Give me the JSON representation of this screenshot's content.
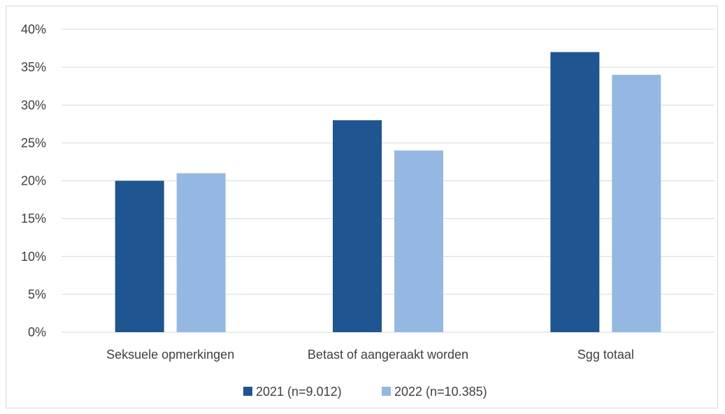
{
  "chart_data": {
    "type": "bar",
    "categories": [
      "Seksuele opmerkingen",
      "Betast of aangeraakt worden",
      "Sgg totaal"
    ],
    "series": [
      {
        "name": "2021 (n=9.012)",
        "values": [
          20,
          28,
          37
        ],
        "color": "#1f5591"
      },
      {
        "name": "2022 (n=10.385)",
        "values": [
          21,
          24,
          34
        ],
        "color": "#95b8e2"
      }
    ],
    "yticks": [
      "0%",
      "5%",
      "10%",
      "15%",
      "20%",
      "25%",
      "30%",
      "35%",
      "40%"
    ],
    "ylim": [
      0,
      40
    ],
    "grid": true,
    "legend_position": "bottom"
  }
}
